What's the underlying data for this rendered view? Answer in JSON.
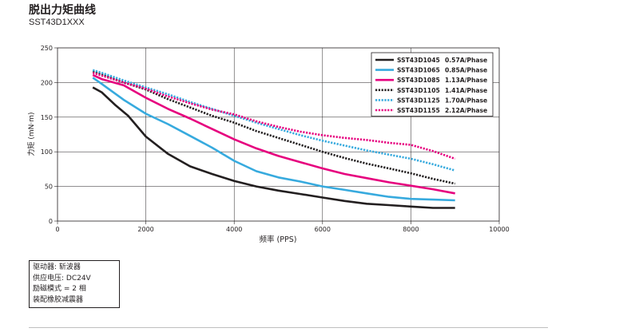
{
  "page": {
    "title": "脱出力矩曲线",
    "subtitle": "SST43D1XXX"
  },
  "chart_data": {
    "type": "line",
    "xlabel": "频率 (PPS)",
    "ylabel": "力矩 (mN·m)",
    "xlim": [
      0,
      10000
    ],
    "ylim": [
      0,
      250
    ],
    "xticks": [
      0,
      2000,
      4000,
      6000,
      8000,
      10000
    ],
    "yticks": [
      0,
      50,
      100,
      150,
      200,
      250
    ],
    "grid": true,
    "legend_position": "top-right",
    "series": [
      {
        "name": "SST43D1045",
        "current": "0.57A/Phase",
        "color": "#231f20",
        "dash": "solid",
        "points": [
          [
            800,
            193
          ],
          [
            1000,
            186
          ],
          [
            1300,
            168
          ],
          [
            1600,
            152
          ],
          [
            2000,
            122
          ],
          [
            2500,
            97
          ],
          [
            3000,
            79
          ],
          [
            3500,
            68
          ],
          [
            4000,
            58
          ],
          [
            4500,
            50
          ],
          [
            5000,
            44
          ],
          [
            5500,
            39
          ],
          [
            6000,
            34
          ],
          [
            6500,
            29
          ],
          [
            7000,
            25
          ],
          [
            7500,
            23
          ],
          [
            8000,
            21
          ],
          [
            8500,
            19
          ],
          [
            9000,
            19
          ]
        ]
      },
      {
        "name": "SST43D1065",
        "current": "0.85A/Phase",
        "color": "#37aade",
        "dash": "solid",
        "points": [
          [
            800,
            207
          ],
          [
            1000,
            198
          ],
          [
            1500,
            175
          ],
          [
            2000,
            155
          ],
          [
            2500,
            140
          ],
          [
            3000,
            123
          ],
          [
            3500,
            106
          ],
          [
            4000,
            87
          ],
          [
            4500,
            72
          ],
          [
            5000,
            63
          ],
          [
            5500,
            57
          ],
          [
            6000,
            50
          ],
          [
            6500,
            45
          ],
          [
            7000,
            40
          ],
          [
            7500,
            35
          ],
          [
            8000,
            32
          ],
          [
            8500,
            31
          ],
          [
            9000,
            30
          ]
        ]
      },
      {
        "name": "SST43D1085",
        "current": "1.13A/Phase",
        "color": "#e6007e",
        "dash": "solid",
        "points": [
          [
            800,
            211
          ],
          [
            1000,
            205
          ],
          [
            1500,
            196
          ],
          [
            2000,
            178
          ],
          [
            2500,
            162
          ],
          [
            3000,
            148
          ],
          [
            3500,
            133
          ],
          [
            4000,
            118
          ],
          [
            4500,
            105
          ],
          [
            5000,
            94
          ],
          [
            5500,
            85
          ],
          [
            6000,
            76
          ],
          [
            6500,
            68
          ],
          [
            7000,
            62
          ],
          [
            7500,
            56
          ],
          [
            8000,
            51
          ],
          [
            8500,
            46
          ],
          [
            9000,
            40
          ]
        ]
      },
      {
        "name": "SST43D1105",
        "current": "1.41A/Phase",
        "color": "#231f20",
        "dash": "dotted",
        "points": [
          [
            800,
            216
          ],
          [
            1000,
            212
          ],
          [
            1500,
            200
          ],
          [
            2000,
            190
          ],
          [
            2500,
            176
          ],
          [
            3000,
            164
          ],
          [
            3500,
            152
          ],
          [
            4000,
            142
          ],
          [
            4500,
            130
          ],
          [
            5000,
            120
          ],
          [
            5500,
            110
          ],
          [
            6000,
            100
          ],
          [
            6500,
            91
          ],
          [
            7000,
            83
          ],
          [
            7500,
            76
          ],
          [
            8000,
            69
          ],
          [
            8500,
            61
          ],
          [
            9000,
            54
          ]
        ]
      },
      {
        "name": "SST43D1125",
        "current": "1.70A/Phase",
        "color": "#37aade",
        "dash": "dotted",
        "points": [
          [
            800,
            218
          ],
          [
            1000,
            214
          ],
          [
            1500,
            203
          ],
          [
            2000,
            193
          ],
          [
            2500,
            183
          ],
          [
            3000,
            172
          ],
          [
            3500,
            162
          ],
          [
            4000,
            152
          ],
          [
            4500,
            142
          ],
          [
            5000,
            133
          ],
          [
            5500,
            124
          ],
          [
            6000,
            116
          ],
          [
            6500,
            109
          ],
          [
            7000,
            102
          ],
          [
            7500,
            96
          ],
          [
            8000,
            90
          ],
          [
            8500,
            82
          ],
          [
            9000,
            73
          ]
        ]
      },
      {
        "name": "SST43D1155",
        "current": "2.12A/Phase",
        "color": "#e6007e",
        "dash": "dotted",
        "points": [
          [
            800,
            214
          ],
          [
            1000,
            210
          ],
          [
            1500,
            200
          ],
          [
            2000,
            191
          ],
          [
            2500,
            180
          ],
          [
            3000,
            170
          ],
          [
            3500,
            161
          ],
          [
            4000,
            154
          ],
          [
            4500,
            144
          ],
          [
            5000,
            136
          ],
          [
            5500,
            129
          ],
          [
            6000,
            124
          ],
          [
            6500,
            120
          ],
          [
            7000,
            117
          ],
          [
            7500,
            113
          ],
          [
            8000,
            110
          ],
          [
            8500,
            101
          ],
          [
            9000,
            90
          ]
        ]
      }
    ]
  },
  "notes": [
    "驱动器: 斩波器",
    "供应电压: DC24V",
    "励磁模式 = 2 相",
    "装配橡胶减震器"
  ]
}
